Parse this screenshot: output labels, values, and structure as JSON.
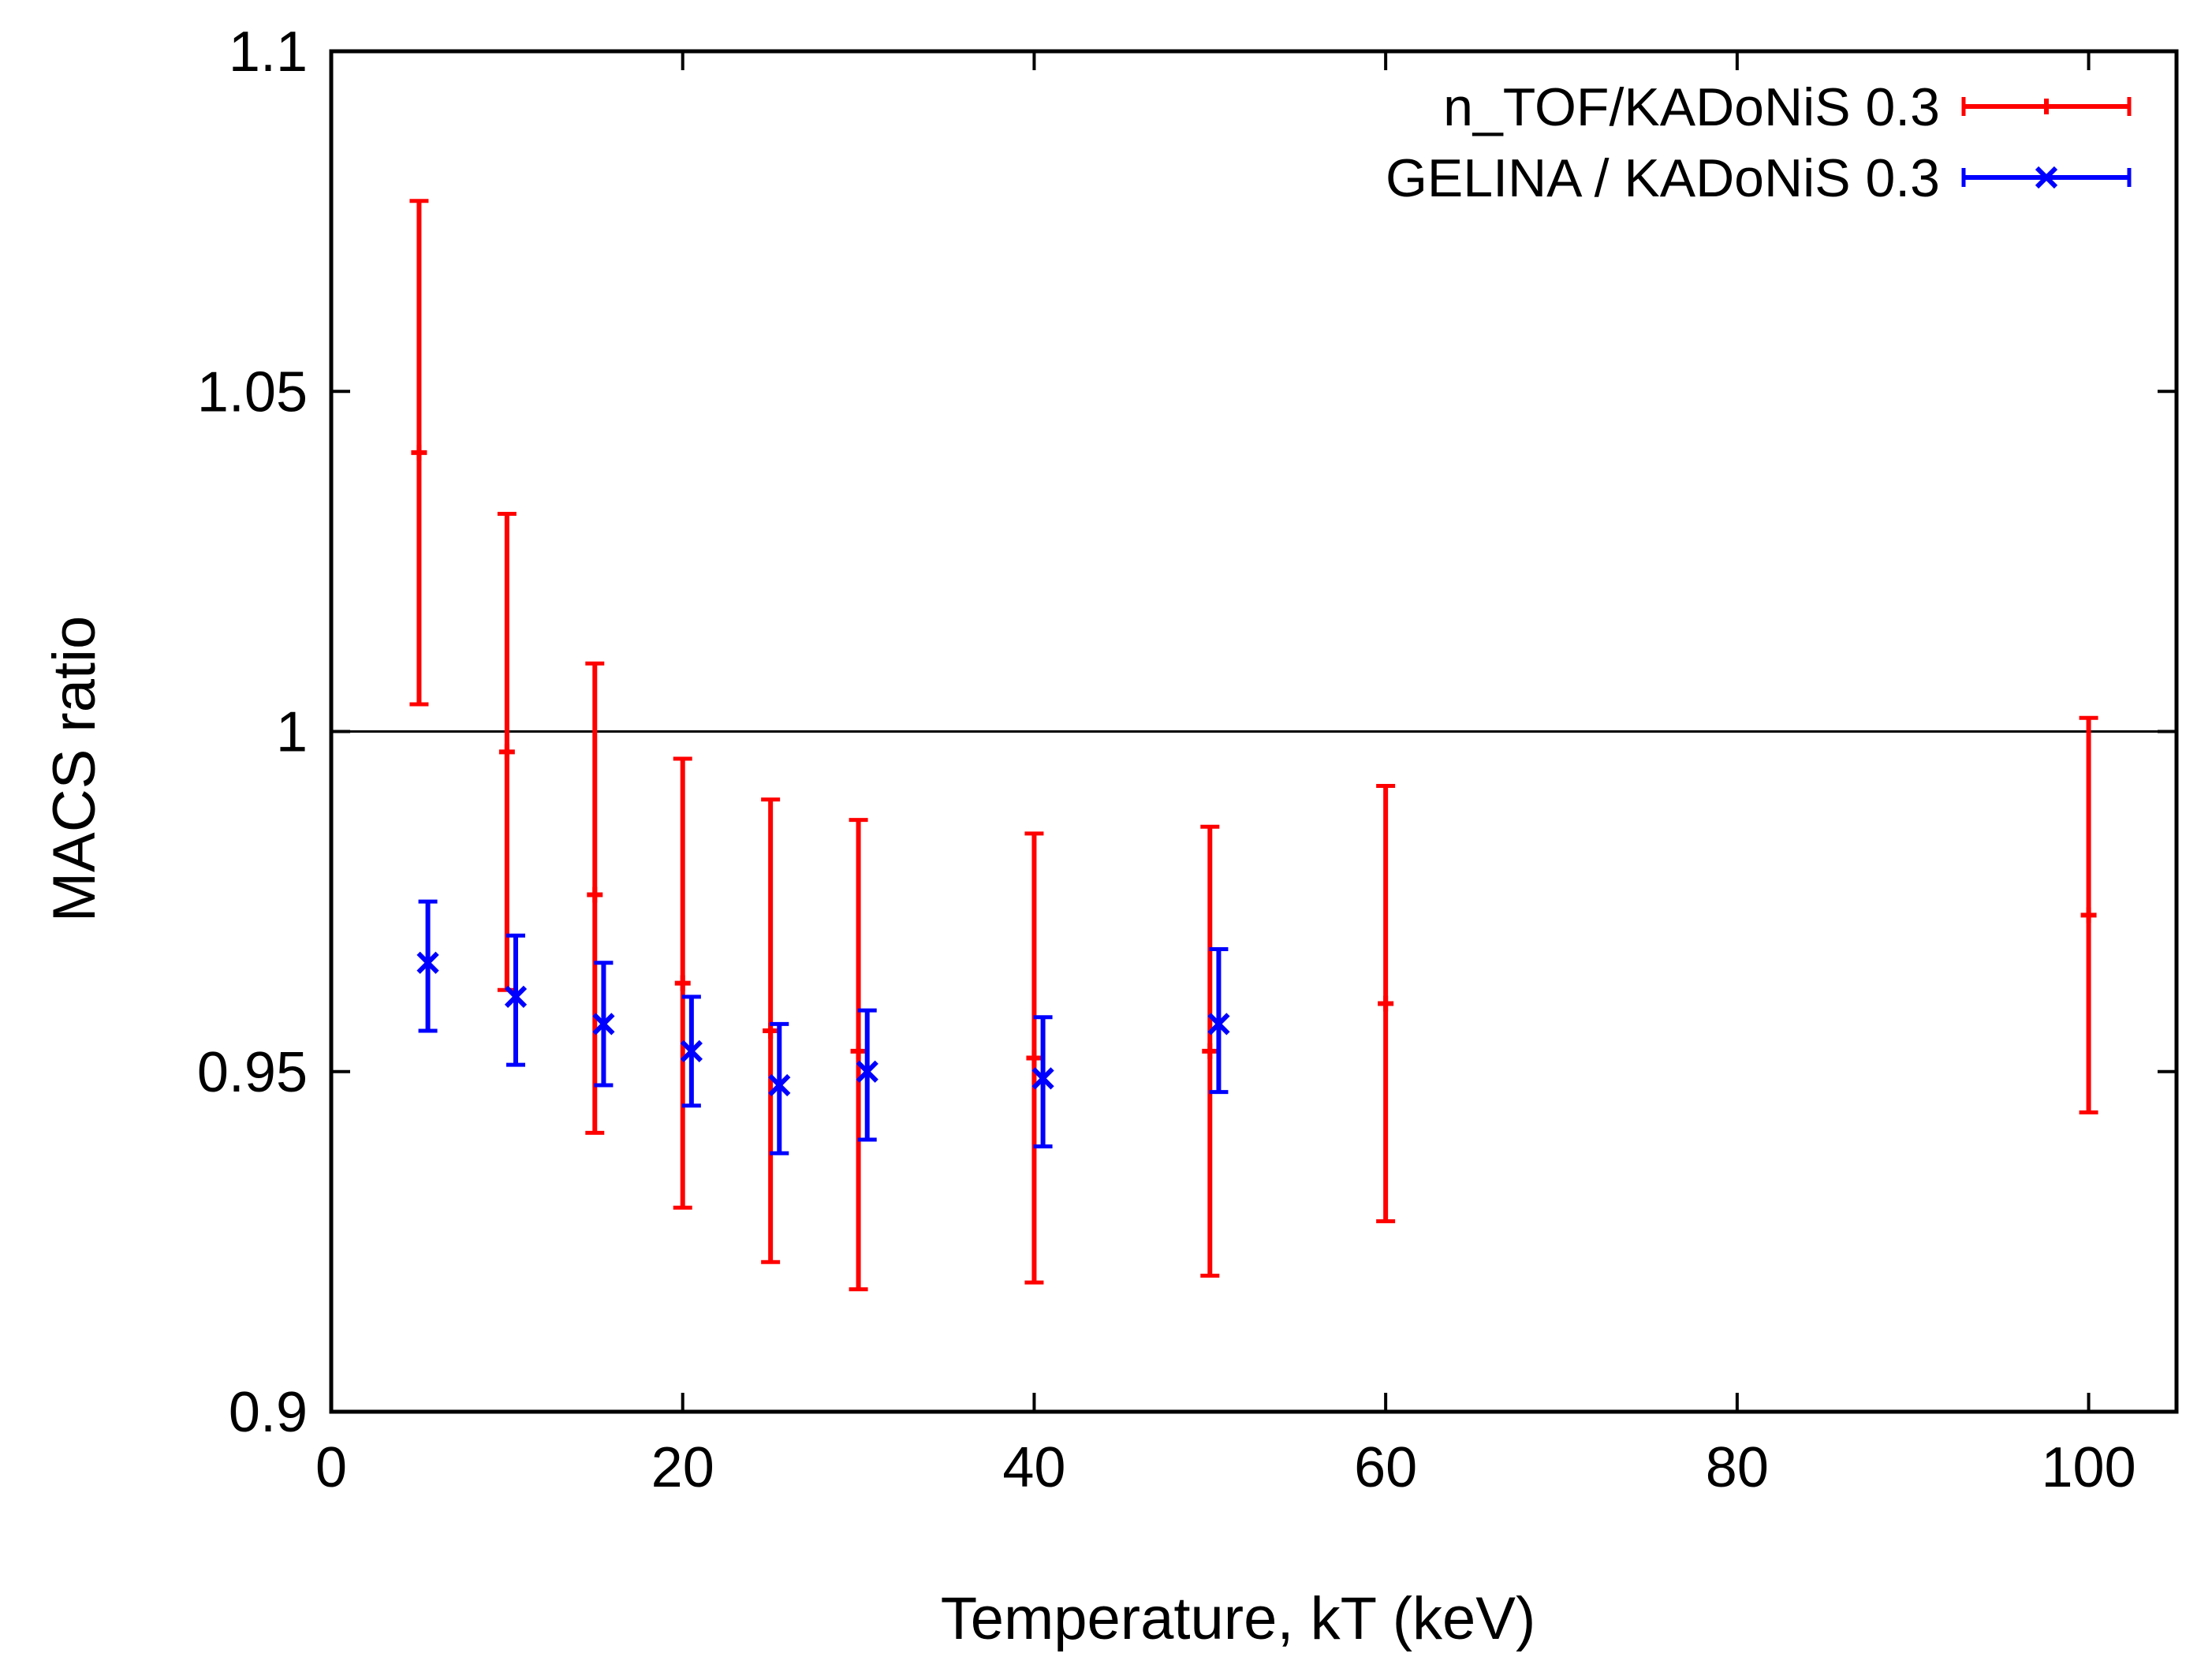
{
  "chart_data": {
    "type": "scatter",
    "xlabel": "Temperature, kT (keV)",
    "ylabel": "MACS ratio",
    "xlim": [
      0,
      105
    ],
    "ylim": [
      0.9,
      1.1
    ],
    "xticks": [
      0,
      20,
      40,
      60,
      80,
      100
    ],
    "xtick_labels": [
      "0",
      "20",
      "40",
      "60",
      "80",
      "100"
    ],
    "yticks": [
      0.9,
      0.95,
      1.0,
      1.05,
      1.1
    ],
    "ytick_labels": [
      "0.9",
      "0.95",
      "1",
      "1.05",
      "1.1"
    ],
    "reference_line": {
      "y": 1.0,
      "color": "#000000"
    },
    "grid": false,
    "legend_position": "top-right",
    "series": [
      {
        "name": "n_TOF/KADoNiS 0.3",
        "color": "#ff0000",
        "marker": "plus",
        "points": [
          {
            "x": 5,
            "y": 1.041,
            "ylow": 1.004,
            "yhigh": 1.078
          },
          {
            "x": 10,
            "y": 0.997,
            "ylow": 0.962,
            "yhigh": 1.032
          },
          {
            "x": 15,
            "y": 0.976,
            "ylow": 0.941,
            "yhigh": 1.01
          },
          {
            "x": 20,
            "y": 0.963,
            "ylow": 0.93,
            "yhigh": 0.996
          },
          {
            "x": 25,
            "y": 0.956,
            "ylow": 0.922,
            "yhigh": 0.99
          },
          {
            "x": 30,
            "y": 0.953,
            "ylow": 0.918,
            "yhigh": 0.987
          },
          {
            "x": 40,
            "y": 0.952,
            "ylow": 0.919,
            "yhigh": 0.985
          },
          {
            "x": 50,
            "y": 0.953,
            "ylow": 0.92,
            "yhigh": 0.986
          },
          {
            "x": 60,
            "y": 0.96,
            "ylow": 0.928,
            "yhigh": 0.992
          },
          {
            "x": 100,
            "y": 0.973,
            "ylow": 0.944,
            "yhigh": 1.002
          }
        ]
      },
      {
        "name": "GELINA / KADoNiS 0.3",
        "color": "#0000ff",
        "marker": "cross",
        "points": [
          {
            "x": 5.5,
            "y": 0.966,
            "ylow": 0.956,
            "yhigh": 0.975
          },
          {
            "x": 10.5,
            "y": 0.961,
            "ylow": 0.951,
            "yhigh": 0.97
          },
          {
            "x": 15.5,
            "y": 0.957,
            "ylow": 0.948,
            "yhigh": 0.966
          },
          {
            "x": 20.5,
            "y": 0.953,
            "ylow": 0.945,
            "yhigh": 0.961
          },
          {
            "x": 25.5,
            "y": 0.948,
            "ylow": 0.938,
            "yhigh": 0.957
          },
          {
            "x": 30.5,
            "y": 0.95,
            "ylow": 0.94,
            "yhigh": 0.959
          },
          {
            "x": 40.5,
            "y": 0.949,
            "ylow": 0.939,
            "yhigh": 0.958
          },
          {
            "x": 50.5,
            "y": 0.957,
            "ylow": 0.947,
            "yhigh": 0.968
          }
        ]
      }
    ]
  }
}
